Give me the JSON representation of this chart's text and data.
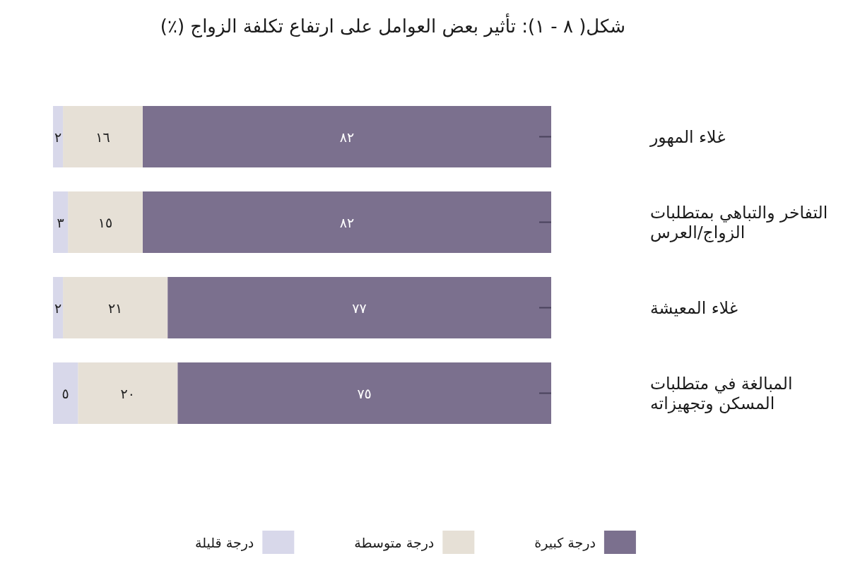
{
  "chart_data": {
    "type": "bar",
    "orientation": "horizontal",
    "stacked": true,
    "title": "شكل( ٨ - ١): تأثير بعض العوامل على ارتفاع تكلفة الزواج (٪)",
    "categories": [
      "غلاء المهور",
      "التفاخر والتباهي بمتطلبات الزواج/العرس",
      "غلاء المعيشة",
      "المبالغة في متطلبات المسكن وتجهيزاته"
    ],
    "series": [
      {
        "name": "درجة كبيرة",
        "color": "#7b708e",
        "values": [
          82,
          82,
          77,
          75
        ],
        "value_labels": [
          "٨٢",
          "٨٢",
          "٧٧",
          "٧٥"
        ]
      },
      {
        "name": "درجة متوسطة",
        "color": "#e6e0d6",
        "values": [
          16,
          15,
          21,
          20
        ],
        "value_labels": [
          "١٦",
          "١٥",
          "٢١",
          "٢٠"
        ]
      },
      {
        "name": "درجة قليلة",
        "color": "#d8d8ea",
        "values": [
          2,
          3,
          2,
          5
        ],
        "value_labels": [
          "٢",
          "٣",
          "٢",
          "٥"
        ]
      }
    ],
    "xlim": [
      100,
      0
    ],
    "legend": "bottom",
    "tick_labels": "y"
  }
}
